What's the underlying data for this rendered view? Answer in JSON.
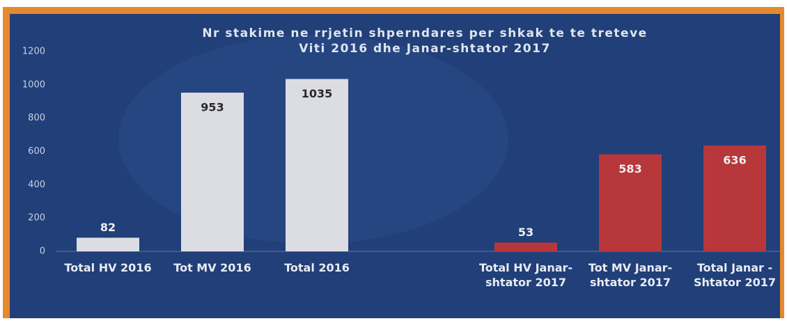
{
  "chart_data": {
    "type": "bar",
    "title": "Nr stakime ne rrjetin shperndares per shkak  te te treteve",
    "subtitle": "Viti 2016 dhe Janar-shtator 2017",
    "categories": [
      "Total HV 2016",
      "Tot MV 2016",
      "Total 2016",
      null,
      "Total HV Janar-shtator 2017",
      "Tot MV Janar-shtator 2017",
      "Total Janar - Shtator 2017"
    ],
    "values": [
      82,
      953,
      1035,
      null,
      53,
      583,
      636
    ],
    "colors": [
      "#dcdde3",
      "#dcdde3",
      "#dcdde3",
      null,
      "#b8373b",
      "#b8373b",
      "#b8373b"
    ],
    "ylim": [
      0,
      1200
    ],
    "yticks": [
      0,
      200,
      400,
      600,
      800,
      1000,
      1200
    ],
    "grid": false
  }
}
